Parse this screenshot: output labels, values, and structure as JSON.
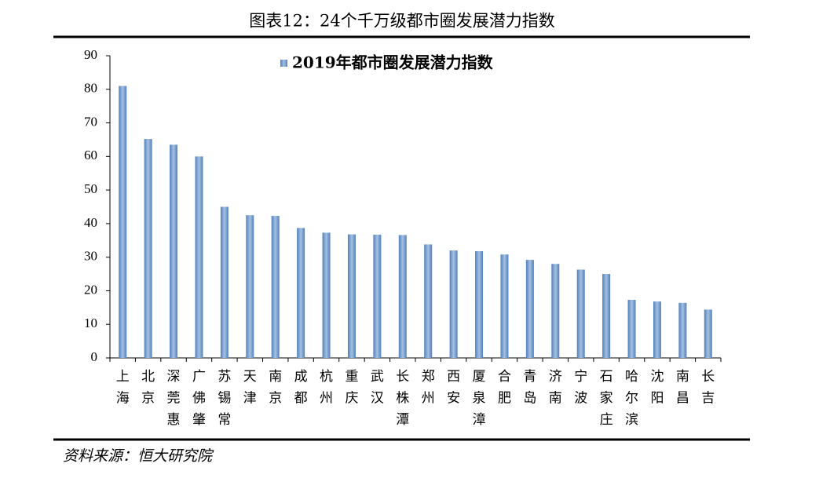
{
  "title": "图表12：24个千万级都市圈发展潜力指数",
  "source": "资料来源：恒大研究院",
  "chart_data": {
    "type": "bar",
    "categories": [
      "上海",
      "北京",
      "深莞惠",
      "广佛肇",
      "苏锡常",
      "天津",
      "南京",
      "成都",
      "杭州",
      "重庆",
      "武汉",
      "长株潭",
      "郑州",
      "西安",
      "厦泉漳",
      "合肥",
      "青岛",
      "济南",
      "宁波",
      "石家庄",
      "哈尔滨",
      "沈阳",
      "南昌",
      "长吉"
    ],
    "series": [
      {
        "name": "2019年都市圈发展潜力指数",
        "color": "#4f81bd",
        "values": [
          81,
          65.2,
          63.5,
          60,
          45,
          42.5,
          42.3,
          38.7,
          37.3,
          36.8,
          36.7,
          36.6,
          33.8,
          32,
          31.8,
          30.8,
          29.2,
          28,
          26.3,
          25,
          17.3,
          16.8,
          16.4,
          14.4
        ]
      }
    ],
    "ylim": [
      0,
      90
    ],
    "yticks": [
      0,
      10,
      20,
      30,
      40,
      50,
      60,
      70,
      80,
      90
    ],
    "legend": "top"
  }
}
